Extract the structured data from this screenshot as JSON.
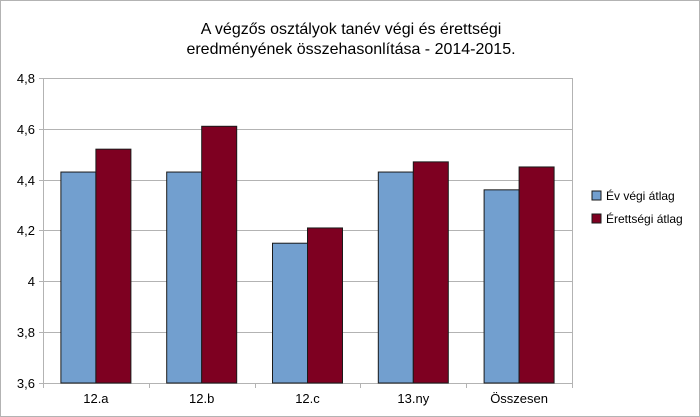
{
  "chart_data": {
    "type": "bar",
    "title": [
      "A végzős osztályok tanév végi és érettségi",
      "eredményének összehasonlítása - 2014-2015."
    ],
    "xlabel": "",
    "ylabel": "",
    "categories": [
      "12.a",
      "12.b",
      "12.c",
      "13.ny",
      "Összesen"
    ],
    "series": [
      {
        "name": "Év végi átlag",
        "values": [
          4.43,
          4.43,
          4.15,
          4.43,
          4.36
        ],
        "color": "#729fcf"
      },
      {
        "name": "Érettségi átlag",
        "values": [
          4.52,
          4.61,
          4.21,
          4.47,
          4.45
        ],
        "color": "#7e0021"
      }
    ],
    "ylim": [
      3.6,
      4.8
    ],
    "yticks": [
      3.6,
      3.8,
      4.0,
      4.2,
      4.4,
      4.6,
      4.8
    ],
    "ytick_labels": [
      "3,6",
      "3,8",
      "4",
      "4,2",
      "4,4",
      "4,6",
      "4,8"
    ],
    "grid": true,
    "legend_position": "right",
    "gridline_color": "#b3b3b3",
    "bar_outline_color": "#1a1a1a"
  }
}
